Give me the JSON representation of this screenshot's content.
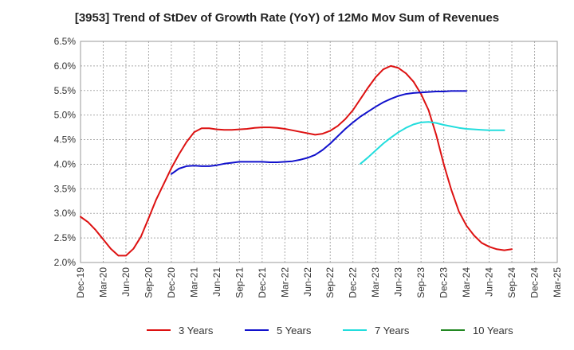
{
  "chart_data": {
    "type": "line",
    "title": "[3953]  Trend of StDev of Growth Rate (YoY) of 12Mo Mov Sum of Revenues",
    "xlabel": "",
    "ylabel": "",
    "ylim": [
      2.0,
      6.5
    ],
    "y_ticks": [
      "2.0%",
      "2.5%",
      "3.0%",
      "3.5%",
      "4.0%",
      "4.5%",
      "5.0%",
      "5.5%",
      "6.0%",
      "6.5%"
    ],
    "x_ticks": [
      "Dec-19",
      "Mar-20",
      "Jun-20",
      "Sep-20",
      "Dec-20",
      "Mar-21",
      "Jun-21",
      "Sep-21",
      "Dec-21",
      "Mar-22",
      "Jun-22",
      "Sep-22",
      "Dec-22",
      "Mar-23",
      "Jun-23",
      "Sep-23",
      "Dec-23",
      "Mar-24",
      "Jun-24",
      "Sep-24",
      "Dec-24",
      "Mar-25"
    ],
    "grid": true,
    "legend_position": "bottom",
    "series": [
      {
        "name": "3 Years",
        "color": "#dd1111",
        "start_index": 0,
        "values": [
          2.93,
          2.82,
          2.66,
          2.47,
          2.28,
          2.14,
          2.14,
          2.28,
          2.53,
          2.9,
          3.28,
          3.6,
          3.92,
          4.2,
          4.45,
          4.65,
          4.73,
          4.73,
          4.71,
          4.7,
          4.7,
          4.71,
          4.72,
          4.74,
          4.75,
          4.75,
          4.74,
          4.72,
          4.69,
          4.66,
          4.63,
          4.6,
          4.62,
          4.68,
          4.78,
          4.92,
          5.1,
          5.33,
          5.56,
          5.77,
          5.93,
          6.0,
          5.96,
          5.85,
          5.68,
          5.43,
          5.1,
          4.6,
          4.0,
          3.48,
          3.04,
          2.75,
          2.55,
          2.4,
          2.32,
          2.27,
          2.25,
          2.27
        ]
      },
      {
        "name": "5 Years",
        "color": "#1111cc",
        "start_index": 12,
        "values": [
          3.8,
          3.91,
          3.96,
          3.97,
          3.96,
          3.96,
          3.98,
          4.01,
          4.03,
          4.05,
          4.05,
          4.05,
          4.05,
          4.04,
          4.04,
          4.05,
          4.06,
          4.09,
          4.13,
          4.19,
          4.29,
          4.42,
          4.57,
          4.72,
          4.85,
          4.97,
          5.07,
          5.17,
          5.26,
          5.33,
          5.39,
          5.43,
          5.45,
          5.46,
          5.47,
          5.48,
          5.48,
          5.49,
          5.49,
          5.49
        ]
      },
      {
        "name": "7 Years",
        "color": "#22dddd",
        "start_index": 37,
        "values": [
          4.01,
          4.14,
          4.28,
          4.42,
          4.54,
          4.65,
          4.74,
          4.81,
          4.85,
          4.86,
          4.84,
          4.8,
          4.77,
          4.74,
          4.72,
          4.71,
          4.7,
          4.69,
          4.69,
          4.69
        ]
      },
      {
        "name": "10 Years",
        "color": "#228822",
        "start_index": 0,
        "values": []
      }
    ]
  }
}
